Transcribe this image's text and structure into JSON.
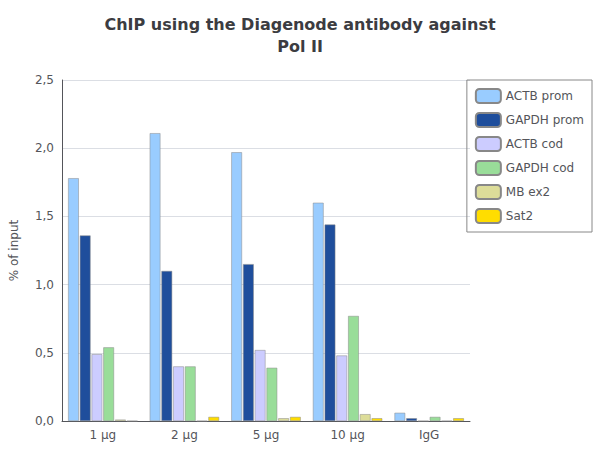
{
  "chart_data": {
    "type": "bar",
    "title": "ChIP using the Diagenode antibody against\nPol II",
    "ylabel": "% of input",
    "categories": [
      "1 μg",
      "2 μg",
      "5 μg",
      "10 μg",
      "IgG"
    ],
    "series": [
      {
        "name": "ACTB prom",
        "color": "#99ccff",
        "values": [
          1.78,
          2.11,
          1.97,
          1.6,
          0.06
        ]
      },
      {
        "name": "GAPDH prom",
        "color": "#1f4e9c",
        "values": [
          1.36,
          1.1,
          1.15,
          1.44,
          0.02
        ]
      },
      {
        "name": "ACTB cod",
        "color": "#ccccff",
        "values": [
          0.49,
          0.4,
          0.52,
          0.48,
          0.0
        ]
      },
      {
        "name": "GAPDH cod",
        "color": "#99dd99",
        "values": [
          0.54,
          0.4,
          0.39,
          0.77,
          0.03
        ]
      },
      {
        "name": "MB ex2",
        "color": "#dddd99",
        "values": [
          0.01,
          0.0,
          0.02,
          0.05,
          0.0
        ]
      },
      {
        "name": "Sat2",
        "color": "#ffdd00",
        "values": [
          0.0,
          0.03,
          0.03,
          0.02,
          0.02
        ]
      }
    ],
    "ylim": [
      0,
      2.5
    ],
    "yticks": [
      {
        "value": 0.0,
        "label": "0,0"
      },
      {
        "value": 0.5,
        "label": "0,5"
      },
      {
        "value": 1.0,
        "label": "1,0"
      },
      {
        "value": 1.5,
        "label": "1,5"
      },
      {
        "value": 2.0,
        "label": "2,0"
      },
      {
        "value": 2.5,
        "label": "2,5"
      }
    ],
    "grid": true,
    "legend": "upper right"
  }
}
